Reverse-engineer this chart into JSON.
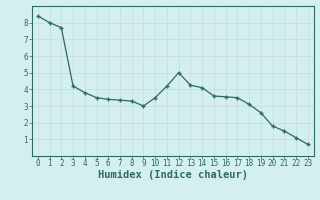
{
  "x": [
    0,
    1,
    2,
    3,
    4,
    5,
    6,
    7,
    8,
    9,
    10,
    11,
    12,
    13,
    14,
    15,
    16,
    17,
    18,
    19,
    20,
    21,
    22,
    23
  ],
  "y": [
    8.4,
    8.0,
    7.7,
    4.2,
    3.8,
    3.5,
    3.4,
    3.35,
    3.3,
    3.0,
    3.5,
    4.2,
    5.0,
    4.25,
    4.1,
    3.6,
    3.55,
    3.5,
    3.1,
    2.6,
    1.8,
    1.5,
    1.1,
    0.7
  ],
  "line_color": "#2d6b5e",
  "marker": "+",
  "markersize": 3.5,
  "linewidth": 0.9,
  "xlabel": "Humidex (Indice chaleur)",
  "xlim": [
    -0.5,
    23.5
  ],
  "ylim": [
    0,
    9
  ],
  "yticks": [
    1,
    2,
    3,
    4,
    5,
    6,
    7,
    8
  ],
  "xticks": [
    0,
    1,
    2,
    3,
    4,
    5,
    6,
    7,
    8,
    9,
    10,
    11,
    12,
    13,
    14,
    15,
    16,
    17,
    18,
    19,
    20,
    21,
    22,
    23
  ],
  "bg_color": "#d4f0ee",
  "grid_color": "#c8dada",
  "line_border_color": "#2d6b5e",
  "tick_color": "#2d6b5e",
  "xlabel_color": "#2d6b5e",
  "label_fontsize": 7.5,
  "tick_fontsize": 5.5
}
